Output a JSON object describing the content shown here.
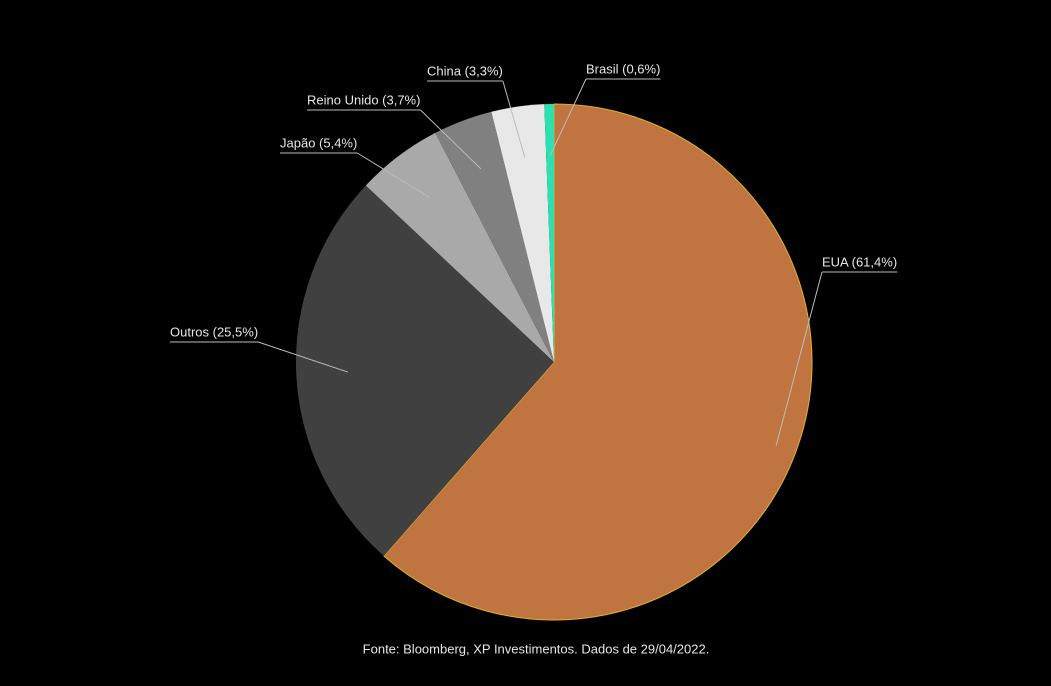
{
  "chart_data": {
    "type": "pie",
    "categories": [
      "EUA (61,4%)",
      "Outros (25,5%)",
      "Japão (5,4%)",
      "Reino Unido (3,7%)",
      "China (3,3%)",
      "Brasil (0,6%)"
    ],
    "values": [
      61.4,
      25.5,
      5.4,
      3.7,
      3.3,
      0.6
    ],
    "colors": [
      "#c07540",
      "#404040",
      "#a9a9a9",
      "#808080",
      "#e8e8e8",
      "#2de0b0"
    ],
    "source": "Fonte: Bloomberg, XP Investimentos. Dados de 29/04/2022."
  }
}
